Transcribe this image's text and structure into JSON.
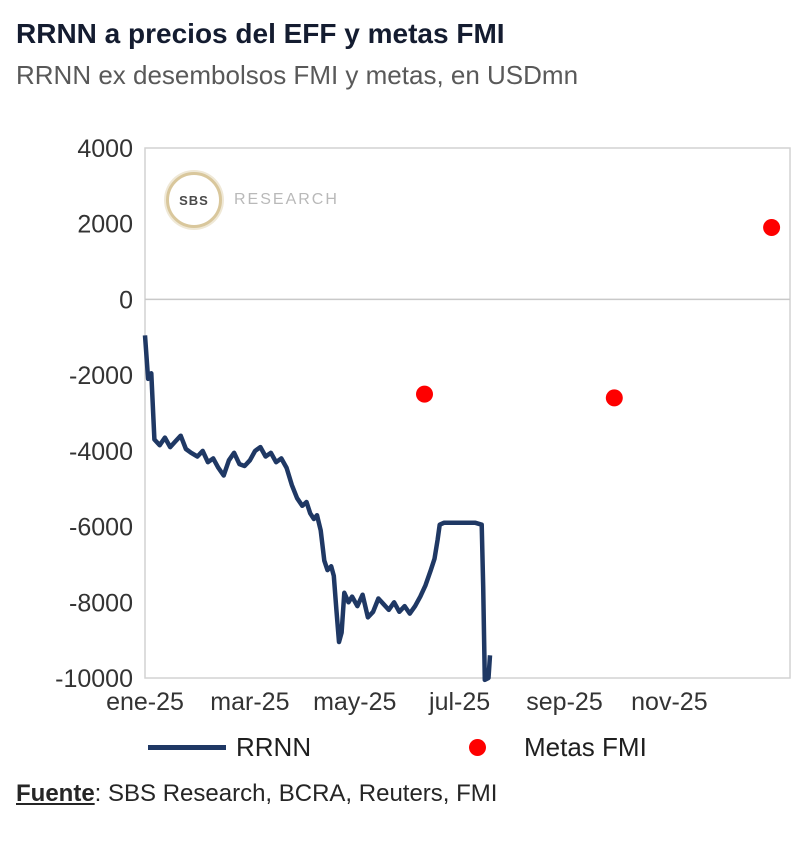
{
  "header": {
    "title": "RRNN a precios del EFF y metas FMI",
    "subtitle": "RRNN ex desembolsos FMI y metas, en USDmn"
  },
  "watermark": {
    "circle_label": "SBS",
    "text": "RESEARCH"
  },
  "legend": [
    {
      "label": "RRNN",
      "type": "line",
      "color": "#1f3864"
    },
    {
      "label": "Metas FMI",
      "type": "dot",
      "color": "#fe0000"
    }
  ],
  "footer": {
    "source_label": "Fuente",
    "source_rest": ": SBS Research, BCRA, Reuters, FMI"
  },
  "chart_data": {
    "type": "line",
    "title": "RRNN a precios del EFF y metas FMI",
    "subtitle": "RRNN ex desembolsos FMI y metas, en USDmn",
    "xlabel": "",
    "ylabel": "",
    "x_unit": "months_since_jan_2025",
    "xlim": [
      0,
      12.3
    ],
    "ylim": [
      -10000,
      4000
    ],
    "grid": "zero-line-only",
    "legend_position": "bottom",
    "colors": {
      "line": "#1f3864",
      "dots": "#fe0000",
      "border": "#d2d2d2",
      "zero_line": "#c9c9c9",
      "tick_text": "#333333"
    },
    "y_ticks": [
      4000,
      2000,
      0,
      -2000,
      -4000,
      -6000,
      -8000,
      -10000
    ],
    "x_ticks": [
      {
        "m": 0,
        "label": "ene-25"
      },
      {
        "m": 2,
        "label": "mar-25"
      },
      {
        "m": 4,
        "label": "may-25"
      },
      {
        "m": 6,
        "label": "jul-25"
      },
      {
        "m": 8,
        "label": "sep-25"
      },
      {
        "m": 10,
        "label": "nov-25"
      }
    ],
    "series": [
      {
        "name": "RRNN",
        "type": "line",
        "color": "#1f3864",
        "points": [
          [
            0.0,
            -950
          ],
          [
            0.06,
            -2100
          ],
          [
            0.12,
            -1950
          ],
          [
            0.18,
            -3700
          ],
          [
            0.28,
            -3850
          ],
          [
            0.38,
            -3650
          ],
          [
            0.48,
            -3900
          ],
          [
            0.58,
            -3750
          ],
          [
            0.68,
            -3600
          ],
          [
            0.78,
            -3950
          ],
          [
            0.88,
            -4050
          ],
          [
            1.0,
            -4150
          ],
          [
            1.1,
            -4000
          ],
          [
            1.2,
            -4300
          ],
          [
            1.3,
            -4200
          ],
          [
            1.4,
            -4450
          ],
          [
            1.5,
            -4650
          ],
          [
            1.6,
            -4250
          ],
          [
            1.7,
            -4050
          ],
          [
            1.8,
            -4350
          ],
          [
            1.9,
            -4400
          ],
          [
            2.0,
            -4250
          ],
          [
            2.1,
            -4000
          ],
          [
            2.2,
            -3900
          ],
          [
            2.3,
            -4150
          ],
          [
            2.4,
            -4050
          ],
          [
            2.5,
            -4300
          ],
          [
            2.6,
            -4200
          ],
          [
            2.7,
            -4450
          ],
          [
            2.8,
            -4900
          ],
          [
            2.9,
            -5250
          ],
          [
            3.0,
            -5450
          ],
          [
            3.08,
            -5350
          ],
          [
            3.15,
            -5650
          ],
          [
            3.22,
            -5800
          ],
          [
            3.28,
            -5700
          ],
          [
            3.35,
            -6100
          ],
          [
            3.42,
            -6900
          ],
          [
            3.48,
            -7150
          ],
          [
            3.55,
            -7050
          ],
          [
            3.6,
            -7300
          ],
          [
            3.65,
            -8200
          ],
          [
            3.7,
            -9050
          ],
          [
            3.75,
            -8800
          ],
          [
            3.8,
            -7750
          ],
          [
            3.88,
            -8000
          ],
          [
            3.95,
            -7850
          ],
          [
            4.05,
            -8100
          ],
          [
            4.15,
            -7800
          ],
          [
            4.25,
            -8400
          ],
          [
            4.35,
            -8250
          ],
          [
            4.45,
            -7900
          ],
          [
            4.55,
            -8050
          ],
          [
            4.65,
            -8200
          ],
          [
            4.75,
            -8000
          ],
          [
            4.85,
            -8250
          ],
          [
            4.95,
            -8100
          ],
          [
            5.05,
            -8300
          ],
          [
            5.15,
            -8100
          ],
          [
            5.25,
            -7850
          ],
          [
            5.35,
            -7550
          ],
          [
            5.45,
            -7150
          ],
          [
            5.52,
            -6850
          ],
          [
            5.58,
            -6350
          ],
          [
            5.62,
            -5950
          ],
          [
            5.7,
            -5900
          ],
          [
            5.9,
            -5900
          ],
          [
            6.1,
            -5900
          ],
          [
            6.3,
            -5900
          ],
          [
            6.42,
            -5950
          ],
          [
            6.45,
            -7600
          ],
          [
            6.48,
            -10050
          ],
          [
            6.55,
            -10000
          ],
          [
            6.58,
            -9400
          ]
        ]
      },
      {
        "name": "Metas FMI",
        "type": "scatter",
        "color": "#fe0000",
        "points": [
          [
            5.33,
            -2500
          ],
          [
            8.95,
            -2600
          ],
          [
            11.95,
            1900
          ]
        ]
      }
    ]
  }
}
